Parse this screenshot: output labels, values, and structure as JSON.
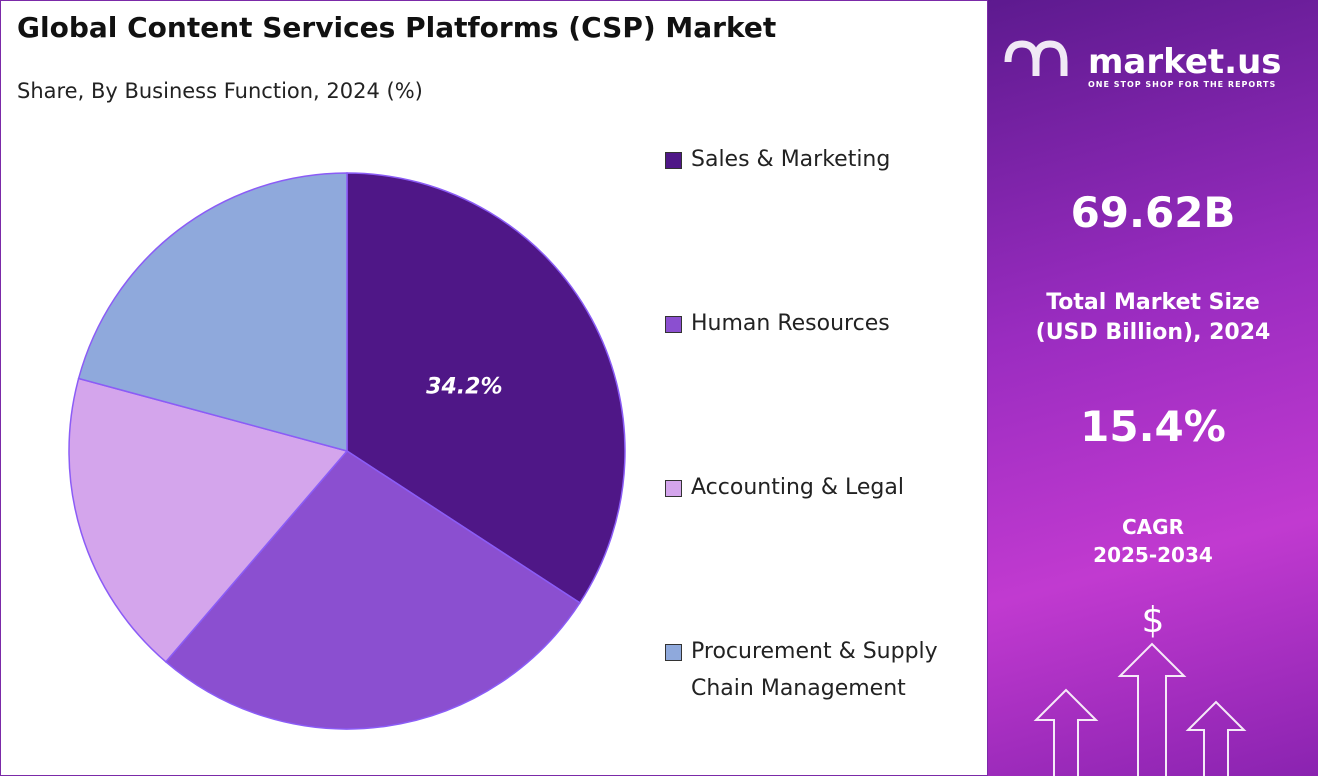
{
  "chart_data": {
    "type": "pie",
    "title": "Global Content Services Platforms (CSP) Market",
    "subtitle": "Share, By Business Function, 2024 (%)",
    "categories": [
      "Sales & Marketing",
      "Human Resources",
      "Accounting & Legal",
      "Procurement & Supply Chain Management"
    ],
    "values": [
      34.2,
      27.1,
      17.9,
      20.8
    ],
    "value_labels": [
      "34.2%",
      null,
      null,
      null
    ],
    "colors": [
      "#4f1787",
      "#8b4fd0",
      "#d4a5ec",
      "#8fa9dc"
    ]
  },
  "side_panel": {
    "brand": "market.us",
    "tagline": "ONE STOP SHOP FOR THE REPORTS",
    "market_size": "69.62B",
    "market_size_label": [
      "Total Market Size",
      "(USD Billion), 2024"
    ],
    "cagr": "15.4%",
    "cagr_label": [
      "CAGR",
      "2025-2034"
    ],
    "icon": "$"
  }
}
